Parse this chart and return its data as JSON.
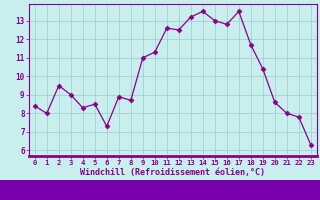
{
  "x": [
    0,
    1,
    2,
    3,
    4,
    5,
    6,
    7,
    8,
    9,
    10,
    11,
    12,
    13,
    14,
    15,
    16,
    17,
    18,
    19,
    20,
    21,
    22,
    23
  ],
  "y": [
    8.4,
    8.0,
    9.5,
    9.0,
    8.3,
    8.5,
    7.3,
    8.9,
    8.7,
    11.0,
    11.3,
    12.6,
    12.5,
    13.2,
    13.5,
    13.0,
    12.8,
    13.5,
    11.7,
    10.4,
    8.6,
    8.0,
    7.8,
    6.3
  ],
  "line_color": "#8b008b",
  "marker": "D",
  "marker_size": 2.5,
  "bg_color": "#c8eeed",
  "grid_color": "#99cccc",
  "xlabel": "Windchill (Refroidissement éolien,°C)",
  "xlabel_color": "#8b008b",
  "ylabel_ticks": [
    6,
    7,
    8,
    9,
    10,
    11,
    12,
    13
  ],
  "xlim": [
    -0.5,
    23.5
  ],
  "ylim": [
    5.7,
    13.9
  ],
  "xtick_labels": [
    "0",
    "1",
    "2",
    "3",
    "4",
    "5",
    "6",
    "7",
    "8",
    "9",
    "10",
    "11",
    "12",
    "13",
    "14",
    "15",
    "16",
    "17",
    "18",
    "19",
    "20",
    "21",
    "22",
    "23"
  ],
  "tick_color": "#8b008b",
  "axis_color": "#8b008b",
  "bottom_bar_color": "#7700aa",
  "grid_lw": 0.5
}
